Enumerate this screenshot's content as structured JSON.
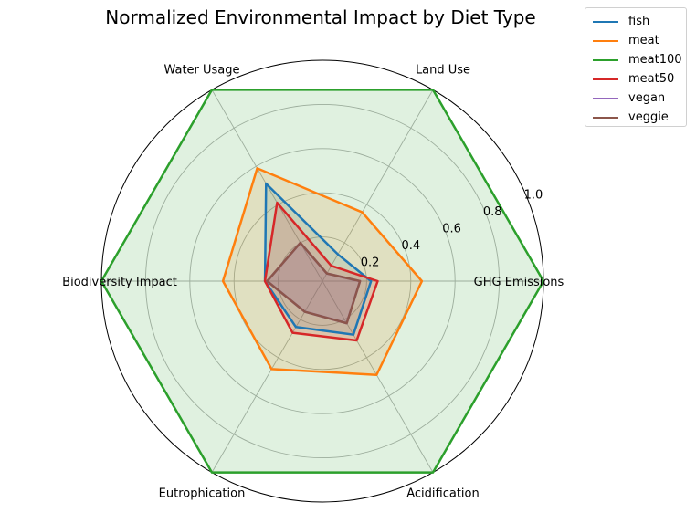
{
  "chart_data": {
    "type": "radar",
    "title": "Normalized Environmental Impact by Diet Type",
    "axes": [
      "GHG Emissions",
      "Land Use",
      "Water Usage",
      "Biodiversity Impact",
      "Eutrophication",
      "Acidification"
    ],
    "rlim": [
      0,
      1.0
    ],
    "rticks": [
      "0.2",
      "0.4",
      "0.6",
      "0.8",
      "1.0"
    ],
    "grid": true,
    "legend_position": "top-right",
    "filled": true,
    "series": [
      {
        "name": "fish",
        "color": "#1f77b4",
        "values": [
          0.22,
          0.14,
          0.51,
          0.26,
          0.24,
          0.28
        ]
      },
      {
        "name": "meat",
        "color": "#ff7f0e",
        "values": [
          0.45,
          0.36,
          0.59,
          0.45,
          0.46,
          0.49
        ]
      },
      {
        "name": "meat100",
        "color": "#2ca02c",
        "values": [
          1.0,
          1.0,
          1.0,
          1.0,
          1.0,
          1.0
        ]
      },
      {
        "name": "meat50",
        "color": "#d62728",
        "values": [
          0.25,
          0.08,
          0.41,
          0.26,
          0.27,
          0.31
        ]
      },
      {
        "name": "vegan",
        "color": "#9467bd",
        "values": [
          0.17,
          0.04,
          0.2,
          0.25,
          0.16,
          0.22
        ]
      },
      {
        "name": "veggie",
        "color": "#8c564b",
        "values": [
          0.17,
          0.04,
          0.2,
          0.25,
          0.16,
          0.22
        ]
      }
    ]
  }
}
